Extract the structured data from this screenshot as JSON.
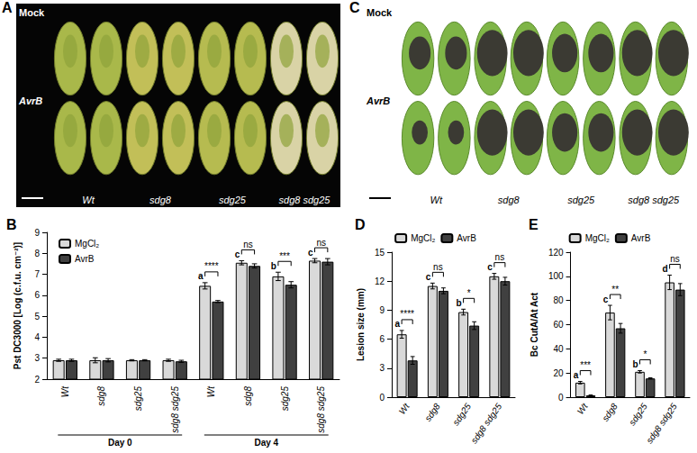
{
  "chart_data": [
    {
      "type": "bar",
      "title": "B",
      "y_label": "Pst DC3000 [Log (c.f.u. cm⁻²)]",
      "categories": [
        "Wt",
        "sdg8",
        "sdg25",
        "sdg8 sdg25",
        "Wt",
        "sdg8",
        "sdg25",
        "sdg8 sdg25"
      ],
      "groups": [
        {
          "label": "Day 0",
          "size": 4
        },
        {
          "label": "Day 4",
          "size": 4
        }
      ],
      "series": [
        {
          "name": "MgCl₂",
          "color": "#d9d9d9",
          "values": [
            2.9,
            2.9,
            2.9,
            2.9,
            6.45,
            7.55,
            6.9,
            7.65
          ],
          "errors": [
            0.05,
            0.12,
            0.03,
            0.05,
            0.15,
            0.1,
            0.2,
            0.1
          ]
        },
        {
          "name": "AvrB",
          "color": "#404040",
          "values": [
            2.9,
            2.9,
            2.9,
            2.85,
            5.7,
            7.4,
            6.5,
            7.6
          ],
          "errors": [
            0.05,
            0.08,
            0.03,
            0.05,
            0.05,
            0.1,
            0.15,
            0.15
          ]
        }
      ],
      "significance": [
        null,
        null,
        null,
        null,
        "****",
        "ns",
        "***",
        "ns"
      ],
      "letters": [
        null,
        null,
        null,
        null,
        "a",
        "c",
        "b",
        "c"
      ],
      "ylim": [
        2,
        9
      ],
      "yticks": [
        2,
        3,
        4,
        5,
        6,
        7,
        8,
        9
      ],
      "grid": false,
      "legend": "top-left"
    },
    {
      "type": "bar",
      "title": "D",
      "y_label": "Lesion size (mm)",
      "categories": [
        "Wt",
        "sdg8",
        "sdg25",
        "sdg8 sdg25"
      ],
      "series": [
        {
          "name": "MgCl₂",
          "color": "#d9d9d9",
          "values": [
            6.5,
            11.5,
            8.8,
            12.5
          ],
          "errors": [
            0.4,
            0.3,
            0.3,
            0.3
          ]
        },
        {
          "name": "AvrB",
          "color": "#404040",
          "values": [
            3.8,
            11,
            7.4,
            12
          ],
          "errors": [
            0.4,
            0.3,
            0.4,
            0.4
          ]
        }
      ],
      "significance": [
        "****",
        "ns",
        "*",
        "ns"
      ],
      "letters": [
        "a",
        "c",
        "b",
        "c"
      ],
      "ylim": [
        0,
        15
      ],
      "yticks": [
        0,
        3,
        6,
        9,
        12,
        15
      ],
      "grid": false,
      "legend": "top"
    },
    {
      "type": "bar",
      "title": "E",
      "y_label": "Bc CutA/At Act",
      "categories": [
        "Wt",
        "sdg8",
        "sdg25",
        "sdg8 sdg25"
      ],
      "series": [
        {
          "name": "MgCl₂",
          "color": "#d9d9d9",
          "values": [
            12,
            70,
            21,
            95
          ],
          "errors": [
            1,
            6,
            1,
            6
          ]
        },
        {
          "name": "AvrB",
          "color": "#404040",
          "values": [
            1.5,
            57,
            15.5,
            89
          ],
          "errors": [
            0.3,
            4,
            0.5,
            5
          ]
        }
      ],
      "significance": [
        "***",
        "**",
        "*",
        "ns"
      ],
      "letters": [
        "a",
        "c",
        "b",
        "d"
      ],
      "ylim": [
        0,
        120
      ],
      "yticks": [
        0,
        20,
        40,
        60,
        80,
        100,
        120
      ],
      "grid": false,
      "legend": "top"
    }
  ],
  "photo_panels": [
    {
      "label": "A",
      "rows": [
        "Mock",
        "AvrB"
      ],
      "genotypes": [
        "Wt",
        "sdg8",
        "sdg25",
        "sdg8 sdg25"
      ]
    },
    {
      "label": "C",
      "rows": [
        "Mock",
        "AvrB"
      ],
      "genotypes": [
        "Wt",
        "sdg8",
        "sdg25",
        "sdg8 sdg25"
      ]
    }
  ]
}
